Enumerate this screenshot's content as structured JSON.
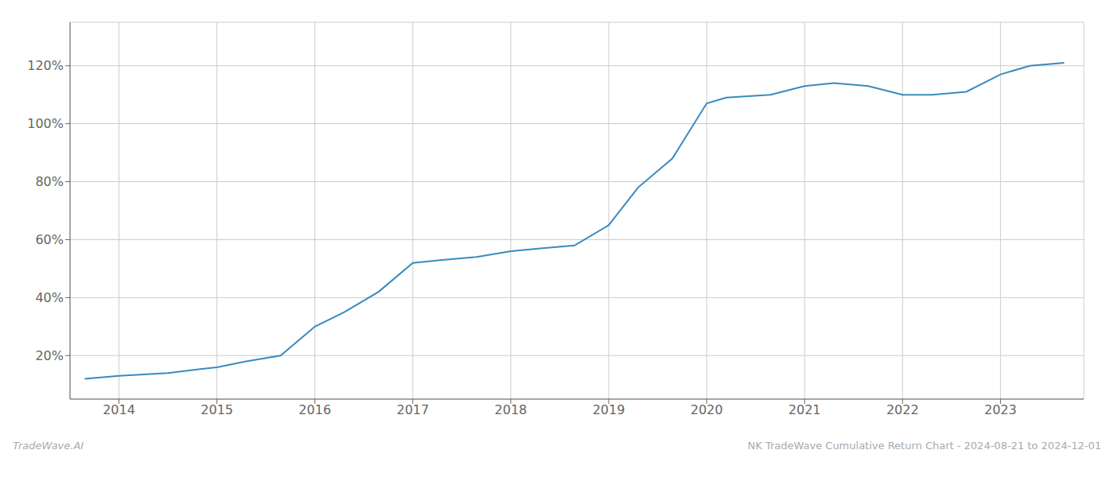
{
  "chart_data": {
    "type": "line",
    "x": [
      2013.65,
      2014.0,
      2014.5,
      2015.0,
      2015.3,
      2015.65,
      2016.0,
      2016.3,
      2016.65,
      2017.0,
      2017.3,
      2017.65,
      2018.0,
      2018.3,
      2018.65,
      2019.0,
      2019.3,
      2019.65,
      2020.0,
      2020.2,
      2020.65,
      2021.0,
      2021.3,
      2021.65,
      2022.0,
      2022.3,
      2022.65,
      2023.0,
      2023.3,
      2023.65
    ],
    "values": [
      12,
      13,
      14,
      16,
      18,
      20,
      30,
      35,
      42,
      52,
      53,
      54,
      56,
      57,
      58,
      65,
      78,
      88,
      107,
      109,
      110,
      113,
      114,
      113,
      110,
      110,
      111,
      117,
      120,
      121
    ],
    "color": "#3a8abf",
    "xlim": [
      2013.5,
      2023.85
    ],
    "ylim": [
      5,
      135
    ],
    "xticks": [
      2014,
      2015,
      2016,
      2017,
      2018,
      2019,
      2020,
      2021,
      2022,
      2023
    ],
    "yticks": [
      {
        "value": 20,
        "label": "20%"
      },
      {
        "value": 40,
        "label": "40%"
      },
      {
        "value": 60,
        "label": "60%"
      },
      {
        "value": 80,
        "label": "80%"
      },
      {
        "value": 100,
        "label": "100%"
      },
      {
        "value": 120,
        "label": "120%"
      }
    ],
    "grid": true,
    "annotations": [
      "TradeWave.AI",
      "NK TradeWave Cumulative Return Chart - 2024-08-21 to 2024-12-01"
    ]
  }
}
